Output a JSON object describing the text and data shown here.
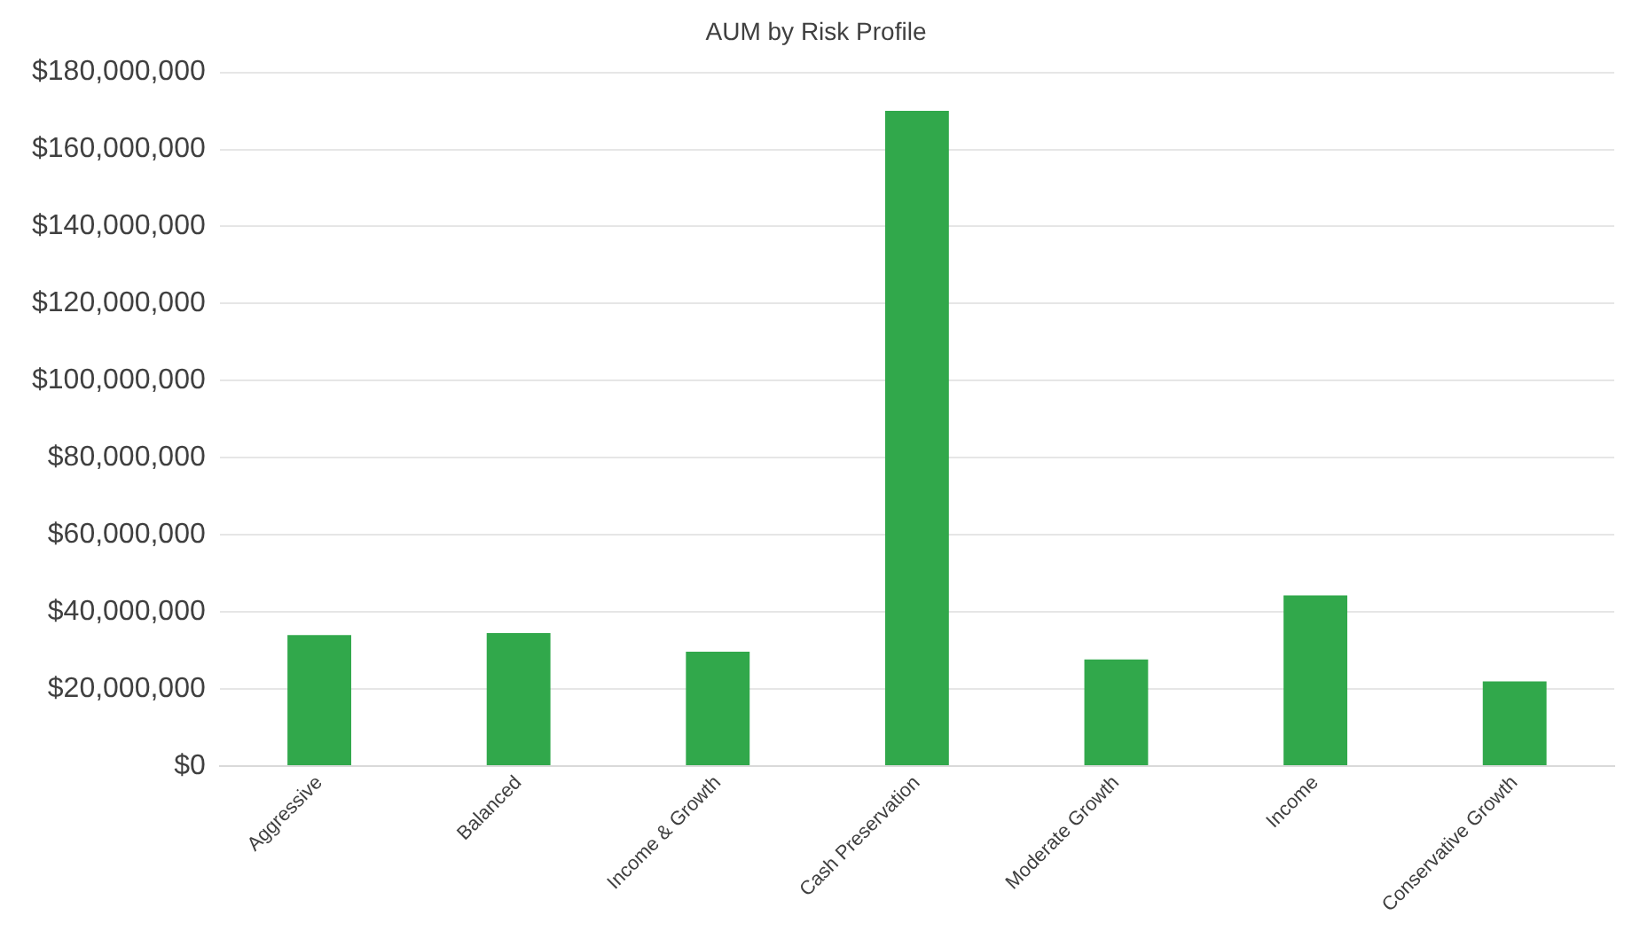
{
  "chart_data": {
    "type": "bar",
    "title": "AUM by Risk Profile",
    "categories": [
      "Aggressive",
      "Balanced",
      "Income & Growth",
      "Cash Preservation",
      "Moderate Growth",
      "Income",
      "Conservative Growth"
    ],
    "values": [
      34000000,
      34500000,
      29700000,
      170000000,
      27700000,
      44300000,
      22000000
    ],
    "color": "#31a84b",
    "ylim": [
      0,
      180000000
    ],
    "yticks": [
      {
        "value": 0,
        "label": "$0"
      },
      {
        "value": 20000000,
        "label": "$20,000,000"
      },
      {
        "value": 40000000,
        "label": "$40,000,000"
      },
      {
        "value": 60000000,
        "label": "$60,000,000"
      },
      {
        "value": 80000000,
        "label": "$80,000,000"
      },
      {
        "value": 100000000,
        "label": "$100,000,000"
      },
      {
        "value": 120000000,
        "label": "$120,000,000"
      },
      {
        "value": 140000000,
        "label": "$140,000,000"
      },
      {
        "value": 160000000,
        "label": "$160,000,000"
      },
      {
        "value": 180000000,
        "label": "$180,000,000"
      }
    ],
    "grid": "y"
  }
}
